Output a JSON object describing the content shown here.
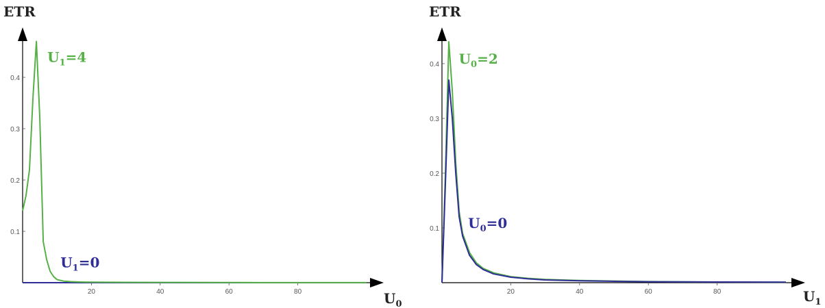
{
  "colors": {
    "green": "#55b046",
    "blue": "#2e2e96",
    "axis": "#000000",
    "tick": "#555555"
  },
  "chart_data": [
    {
      "type": "line",
      "ylabel": "ETR",
      "xlabel": {
        "base": "U",
        "sub": "0"
      },
      "xlim": [
        0,
        100
      ],
      "ylim": [
        0,
        0.5
      ],
      "xticks": [
        20,
        40,
        60,
        80
      ],
      "xtick_labels": [
        "20",
        "40",
        "60",
        "80"
      ],
      "yticks": [
        0.1,
        0.2,
        0.3,
        0.4
      ],
      "ytick_labels": [
        "0.1",
        "0.2",
        "0.3",
        "0.4"
      ],
      "grid": false,
      "series": [
        {
          "color": "green",
          "x": [
            0,
            1,
            2,
            3,
            4,
            5,
            6,
            7,
            8,
            9,
            10,
            12,
            14,
            16,
            20,
            30,
            40,
            60,
            80,
            100
          ],
          "y": [
            0.14,
            0.17,
            0.22,
            0.36,
            0.47,
            0.32,
            0.08,
            0.045,
            0.022,
            0.012,
            0.006,
            0.003,
            0.002,
            0.0015,
            0.001,
            0.0007,
            0.0005,
            0.0003,
            0.0002,
            0.0001
          ]
        },
        {
          "color": "blue",
          "x": [
            0,
            100
          ],
          "y": [
            0,
            0
          ]
        }
      ],
      "annotations": [
        {
          "base": "U",
          "sub": "1",
          "rest": "=4",
          "color": "green",
          "x": 7.2,
          "y": 0.43
        },
        {
          "base": "U",
          "sub": "1",
          "rest": "=0",
          "color": "blue",
          "x": 11.0,
          "y": 0.03
        }
      ]
    },
    {
      "type": "line",
      "ylabel": "ETR",
      "xlabel": {
        "base": "U",
        "sub": "1"
      },
      "xlim": [
        0,
        100
      ],
      "ylim": [
        0,
        0.45
      ],
      "xticks": [
        20,
        40,
        60,
        80
      ],
      "xtick_labels": [
        "20",
        "40",
        "60",
        "80"
      ],
      "yticks": [
        0.1,
        0.2,
        0.3,
        0.4
      ],
      "ytick_labels": [
        "0.1",
        "0.2",
        "0.3",
        "0.4"
      ],
      "grid": false,
      "series": [
        {
          "color": "green",
          "x": [
            0,
            1,
            2,
            3,
            4,
            5,
            6,
            8,
            10,
            12,
            15,
            20,
            25,
            30,
            40,
            50,
            60,
            80,
            100
          ],
          "y": [
            0,
            0.2,
            0.44,
            0.35,
            0.22,
            0.13,
            0.09,
            0.055,
            0.036,
            0.026,
            0.018,
            0.011,
            0.008,
            0.006,
            0.004,
            0.003,
            0.002,
            0.0013,
            0.001
          ]
        },
        {
          "color": "blue",
          "x": [
            0,
            1,
            2,
            3,
            4,
            5,
            6,
            8,
            10,
            12,
            15,
            20,
            25,
            30,
            40,
            50,
            60,
            80,
            100
          ],
          "y": [
            0,
            0.18,
            0.37,
            0.3,
            0.2,
            0.12,
            0.085,
            0.05,
            0.033,
            0.024,
            0.016,
            0.01,
            0.007,
            0.005,
            0.0035,
            0.0025,
            0.0018,
            0.0012,
            0.0009
          ]
        }
      ],
      "annotations": [
        {
          "base": "U",
          "sub": "0",
          "rest": "=2",
          "color": "green",
          "x": 4.9,
          "y": 0.4
        },
        {
          "base": "U",
          "sub": "0",
          "rest": "=0",
          "color": "blue",
          "x": 7.6,
          "y": 0.1
        }
      ]
    }
  ]
}
